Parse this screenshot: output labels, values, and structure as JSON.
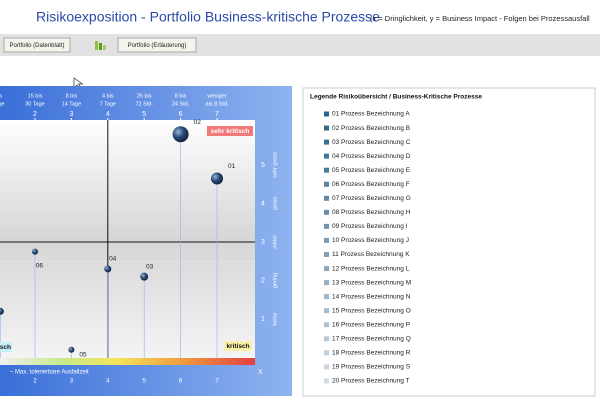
{
  "header": {
    "title": "Risikoexposition - Portfolio Business-kritische Prozesse",
    "subtitle": "(x = Dringlichkeit,    y = Business Impact  -  Folgen bei Prozessausfall"
  },
  "tabs": [
    "Portfolio (Datenblatt)",
    "Portfolio (Erläuterung)"
  ],
  "chart": {
    "column_labels": [
      [
        "als",
        "Tage"
      ],
      [
        "15 bis",
        "30 Tage"
      ],
      [
        "8 bis",
        "14 Tage"
      ],
      [
        "4 bis",
        "7 Tage"
      ],
      [
        "25 bis",
        "72 Std."
      ],
      [
        "8 bis",
        "24 Std."
      ],
      [
        "weniger",
        "als 8 Std."
      ]
    ],
    "xticks": [
      2,
      3,
      4,
      5,
      6,
      7
    ],
    "yticks": [
      1,
      2,
      3,
      4,
      5
    ],
    "ytick_names": [
      "keine",
      "gering",
      "mittel",
      "gross",
      "sehr gross"
    ],
    "divider": {
      "x": 4,
      "y": 3
    },
    "points": [
      {
        "label": "02",
        "x": 6.0,
        "y": 5.8,
        "size": 8
      },
      {
        "label": "01",
        "x": 7.0,
        "y": 4.65,
        "size": 6
      },
      {
        "label": "04",
        "x": 4.0,
        "y": 2.3,
        "size": 3.5
      },
      {
        "label": "03",
        "x": 5.0,
        "y": 2.1,
        "size": 4
      },
      {
        "label": "06",
        "x": 2.0,
        "y": 2.75,
        "size": 3
      },
      {
        "label": "05",
        "x": 3.0,
        "y": 0.2,
        "size": 3
      },
      {
        "x": 1.05,
        "y": 1.2,
        "size": 3.5
      }
    ],
    "corner_labels": {
      "top_right": "sehr kritisch",
      "bottom_right": "kritisch",
      "bottom_left": "sch"
    },
    "x_axis_note": "–   Max. tolerierbare Ausfallzeit",
    "x_axis_letter": "X"
  },
  "legend": {
    "title": "Legende Risikoübersicht / Business-Kritische Prozesse",
    "items": [
      "01 Prozess Bezeichnung A",
      "02 Prozess Bezeichnung B",
      "03 Prozess Bezeichnung C",
      "04 Prozess Bezeichnung D",
      "05 Prozess Bezeichnung E",
      "06 Prozess Bezeichnung F",
      "07 Prozess Bezeichnung G",
      "08 Prozess Bezeichnung H",
      "09 Prozess Bezeichnung I",
      "10 Prozess Bezeichnung J",
      "11 Prozess Bezeichnung K",
      "12 Prozess Bezeichnung L",
      "13 Prozess Bezeichnung M",
      "14 Prozess Bezeichnung N",
      "15 Prozess Bezeichnung O",
      "16 Prozess Bezeichnung P",
      "17 Prozess Bezeichnung Q",
      "18 Prozess Bezeichnung R",
      "19 Prozess Bezeichnung S",
      "20 Prozess Bezeichnung T"
    ]
  }
}
